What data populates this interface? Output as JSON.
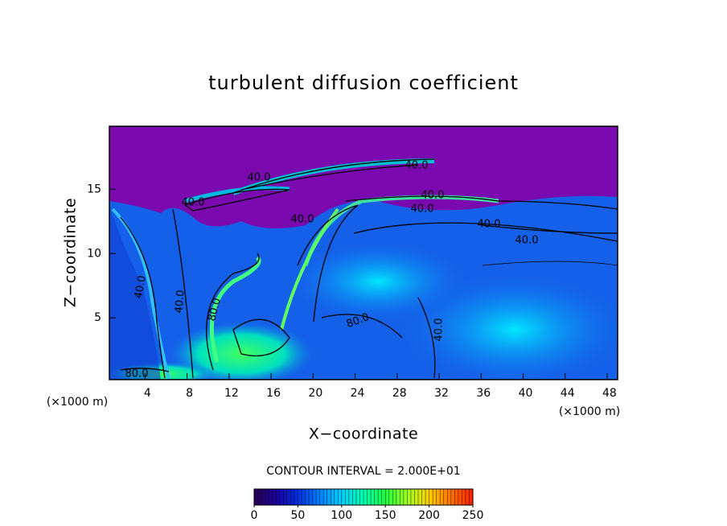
{
  "chart_data": {
    "type": "contour",
    "title": "turbulent diffusion coefficient",
    "x_label": "X−coordinate",
    "y_label": "Z−coordinate",
    "x_unit_label": "(×1000 m)",
    "y_unit_label": "(×1000 m)",
    "xlim": [
      0.6,
      49
    ],
    "ylim": [
      0.2,
      19.9
    ],
    "xticks": [
      4,
      8,
      12,
      16,
      20,
      24,
      28,
      32,
      36,
      40,
      44,
      48
    ],
    "yticks": [
      5,
      10,
      15
    ],
    "contour_interval_label": "CONTOUR INTERVAL = 2.000E+01",
    "contour_labels": [
      "40.0",
      "40.0",
      "40.0",
      "40.0",
      "40.0",
      "40.0",
      "40.0",
      "40.0",
      "40.0",
      "40.0",
      "80.0",
      "80.0",
      "40.0",
      "80.0"
    ],
    "colorbar": {
      "lim": [
        0,
        250
      ],
      "ticks": [
        0,
        50,
        100,
        150,
        200,
        250
      ],
      "colors": [
        "#2a0050",
        "#1a00a0",
        "#0030e0",
        "#0080ff",
        "#00d0ff",
        "#00ffb0",
        "#20ff40",
        "#a0ff20",
        "#ffd000",
        "#ff7000",
        "#ff2000"
      ]
    }
  }
}
